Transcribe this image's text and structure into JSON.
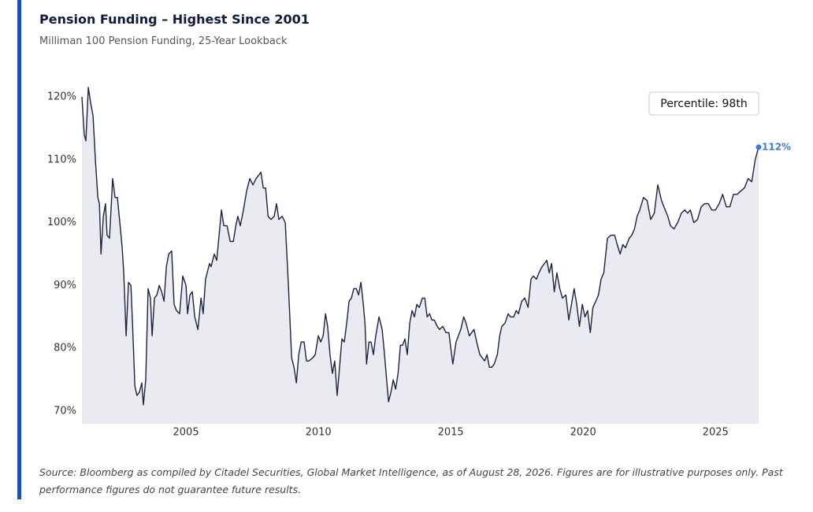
{
  "chart_data": {
    "type": "area-line",
    "title": "Pension Funding – Highest Since 2001",
    "subtitle": "Milliman 100 Pension Funding, 25-Year Lookback",
    "source": "Source: Bloomberg as compiled by Citadel Securities, Global Market Intelligence, as of August 28, 2026. Figures are for illustrative purposes only. Past performance figures do not guarantee future results.",
    "annotations": [
      "112%",
      "Percentile: 98th"
    ],
    "color": "#1b2340",
    "fill_color": "#e9ebf0",
    "marker_color": "#3b7be0",
    "xlim": [
      2001.07,
      2026.63
    ],
    "xticks": [
      2005,
      2010,
      2015,
      2020,
      2025
    ],
    "ylim": [
      68,
      122
    ],
    "yticks": [
      {
        "value": 70,
        "label": "70%"
      },
      {
        "value": 80,
        "label": "80%"
      },
      {
        "value": 90,
        "label": "90%"
      },
      {
        "value": 100,
        "label": "100%"
      },
      {
        "value": 110,
        "label": "110%"
      },
      {
        "value": 120,
        "label": "120%"
      }
    ],
    "grid": false,
    "x": [
      2001.07,
      2001.16,
      2001.22,
      2001.31,
      2001.4,
      2001.49,
      2001.58,
      2001.67,
      2001.73,
      2001.79,
      2001.88,
      2001.96,
      2002.02,
      2002.11,
      2002.23,
      2002.32,
      2002.41,
      2002.5,
      2002.59,
      2002.65,
      2002.74,
      2002.83,
      2002.92,
      2002.98,
      2003.07,
      2003.15,
      2003.24,
      2003.33,
      2003.39,
      2003.48,
      2003.57,
      2003.66,
      2003.72,
      2003.81,
      2003.9,
      2003.99,
      2004.08,
      2004.17,
      2004.26,
      2004.35,
      2004.46,
      2004.55,
      2004.64,
      2004.76,
      2004.88,
      2005.0,
      2005.06,
      2005.15,
      2005.24,
      2005.33,
      2005.45,
      2005.57,
      2005.65,
      2005.74,
      2005.89,
      2005.95,
      2006.07,
      2006.16,
      2006.25,
      2006.34,
      2006.43,
      2006.55,
      2006.67,
      2006.79,
      2006.88,
      2006.96,
      2007.05,
      2007.17,
      2007.29,
      2007.41,
      2007.53,
      2007.65,
      2007.83,
      2007.92,
      2008.01,
      2008.1,
      2008.21,
      2008.33,
      2008.42,
      2008.51,
      2008.63,
      2008.75,
      2008.87,
      2008.99,
      2009.08,
      2009.17,
      2009.26,
      2009.35,
      2009.46,
      2009.55,
      2009.64,
      2009.79,
      2009.88,
      2010.0,
      2010.09,
      2010.18,
      2010.27,
      2010.35,
      2010.44,
      2010.53,
      2010.62,
      2010.71,
      2010.8,
      2010.89,
      2010.98,
      2011.07,
      2011.16,
      2011.25,
      2011.34,
      2011.43,
      2011.52,
      2011.61,
      2011.7,
      2011.76,
      2011.82,
      2011.91,
      2011.99,
      2012.08,
      2012.17,
      2012.29,
      2012.41,
      2012.5,
      2012.56,
      2012.65,
      2012.74,
      2012.83,
      2012.92,
      2013.01,
      2013.1,
      2013.18,
      2013.27,
      2013.36,
      2013.45,
      2013.54,
      2013.63,
      2013.72,
      2013.81,
      2013.93,
      2014.02,
      2014.11,
      2014.2,
      2014.29,
      2014.38,
      2014.49,
      2014.58,
      2014.7,
      2014.82,
      2014.93,
      2015.08,
      2015.2,
      2015.29,
      2015.38,
      2015.49,
      2015.58,
      2015.7,
      2015.79,
      2015.88,
      2015.98,
      2016.1,
      2016.19,
      2016.28,
      2016.37,
      2016.46,
      2016.55,
      2016.64,
      2016.76,
      2016.85,
      2016.93,
      2017.05,
      2017.17,
      2017.26,
      2017.38,
      2017.47,
      2017.56,
      2017.68,
      2017.8,
      2017.92,
      2018.03,
      2018.12,
      2018.24,
      2018.33,
      2018.45,
      2018.54,
      2018.63,
      2018.72,
      2018.81,
      2018.91,
      2019.01,
      2019.12,
      2019.22,
      2019.35,
      2019.46,
      2019.56,
      2019.66,
      2019.76,
      2019.86,
      2019.97,
      2020.07,
      2020.17,
      2020.27,
      2020.37,
      2020.48,
      2020.58,
      2020.68,
      2020.78,
      2020.92,
      2021.05,
      2021.19,
      2021.29,
      2021.4,
      2021.5,
      2021.6,
      2021.74,
      2021.84,
      2021.94,
      2022.04,
      2022.14,
      2022.28,
      2022.42,
      2022.55,
      2022.69,
      2022.82,
      2022.96,
      2023.1,
      2023.2,
      2023.3,
      2023.43,
      2023.57,
      2023.71,
      2023.84,
      2023.95,
      2024.05,
      2024.18,
      2024.32,
      2024.46,
      2024.59,
      2024.73,
      2024.86,
      2025.0,
      2025.14,
      2025.27,
      2025.41,
      2025.54,
      2025.68,
      2025.82,
      2025.95,
      2026.09,
      2026.23,
      2026.37,
      2026.5,
      2026.63
    ],
    "values": [
      120,
      114,
      113,
      121.5,
      119,
      117,
      110,
      104,
      103,
      95,
      101,
      103,
      98,
      97.5,
      107,
      104,
      104,
      100,
      96,
      92,
      82,
      90.5,
      90,
      84,
      74,
      72.5,
      73,
      74.5,
      71,
      75,
      89.5,
      88,
      82,
      88,
      88.5,
      90,
      89,
      87.5,
      93,
      95,
      95.5,
      87,
      86,
      85.5,
      91.5,
      90,
      85.5,
      88.5,
      89,
      85,
      83,
      88,
      85.5,
      91,
      93.5,
      93,
      95,
      94,
      98,
      102,
      99.5,
      99.5,
      97,
      97,
      99.5,
      101,
      99.5,
      102,
      105,
      107,
      106,
      107,
      108,
      105.5,
      105.5,
      101,
      100.5,
      101,
      103,
      100.5,
      101,
      100,
      90,
      78.5,
      77,
      74.5,
      79,
      81,
      81,
      78,
      78,
      78.5,
      79,
      82,
      81,
      82,
      85.5,
      83.5,
      79,
      76,
      78,
      72.5,
      77,
      81.5,
      81,
      84,
      87.5,
      88,
      89.5,
      89.5,
      88.5,
      90.5,
      87,
      84,
      77.5,
      81,
      81,
      79,
      82,
      85,
      83,
      79,
      76,
      71.5,
      73,
      75,
      73.5,
      76,
      80.5,
      80.5,
      81.5,
      79,
      84,
      86,
      85,
      87,
      86.5,
      88,
      88,
      85,
      85.5,
      84.5,
      84.5,
      83.5,
      83,
      83.5,
      82.5,
      82.5,
      77.5,
      81,
      82,
      83,
      85,
      84,
      82,
      82.5,
      83,
      81,
      79,
      78.5,
      78,
      79,
      77,
      77,
      77.5,
      79,
      82,
      83.5,
      84,
      85.5,
      85,
      85,
      86,
      85.5,
      87.5,
      88,
      86.5,
      91,
      91.5,
      91,
      92,
      93,
      93.5,
      94,
      92,
      93.5,
      89,
      92,
      89.5,
      88,
      88.5,
      84.5,
      87,
      89.5,
      87,
      83.5,
      87,
      85,
      86,
      82.5,
      86.5,
      87.5,
      88.5,
      91,
      92,
      97.5,
      98,
      98,
      96.5,
      95,
      96.5,
      96,
      97.5,
      98,
      99,
      101,
      102,
      104,
      103.5,
      100.5,
      101.5,
      106,
      103.5,
      102,
      101,
      99.5,
      99,
      100,
      101.5,
      102,
      101.5,
      102,
      100,
      100.5,
      102.5,
      103,
      103,
      102,
      102,
      103,
      104.5,
      102.5,
      102.5,
      104.5,
      104.5,
      105,
      105.5,
      107,
      106.5,
      110,
      112
    ]
  }
}
